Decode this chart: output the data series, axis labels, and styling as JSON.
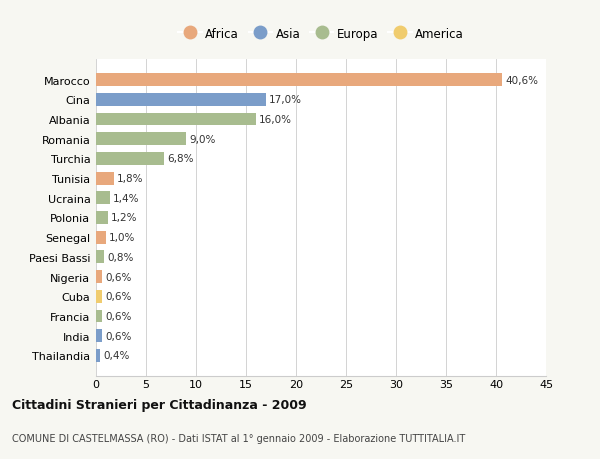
{
  "countries": [
    "Marocco",
    "Cina",
    "Albania",
    "Romania",
    "Turchia",
    "Tunisia",
    "Ucraina",
    "Polonia",
    "Senegal",
    "Paesi Bassi",
    "Nigeria",
    "Cuba",
    "Francia",
    "India",
    "Thailandia"
  ],
  "values": [
    40.6,
    17.0,
    16.0,
    9.0,
    6.8,
    1.8,
    1.4,
    1.2,
    1.0,
    0.8,
    0.6,
    0.6,
    0.6,
    0.6,
    0.4
  ],
  "labels": [
    "40,6%",
    "17,0%",
    "16,0%",
    "9,0%",
    "6,8%",
    "1,8%",
    "1,4%",
    "1,2%",
    "1,0%",
    "0,8%",
    "0,6%",
    "0,6%",
    "0,6%",
    "0,6%",
    "0,4%"
  ],
  "continents": [
    "Africa",
    "Asia",
    "Europa",
    "Europa",
    "Europa",
    "Africa",
    "Europa",
    "Europa",
    "Africa",
    "Europa",
    "Africa",
    "America",
    "Europa",
    "Asia",
    "Asia"
  ],
  "colors": {
    "Africa": "#E8A87C",
    "Asia": "#7B9DC9",
    "Europa": "#A8BC8F",
    "America": "#F0CC6E"
  },
  "legend_order": [
    "Africa",
    "Asia",
    "Europa",
    "America"
  ],
  "xlim": [
    0,
    45
  ],
  "xticks": [
    0,
    5,
    10,
    15,
    20,
    25,
    30,
    35,
    40,
    45
  ],
  "title": "Cittadini Stranieri per Cittadinanza - 2009",
  "subtitle": "COMUNE DI CASTELMASSA (RO) - Dati ISTAT al 1° gennaio 2009 - Elaborazione TUTTITALIA.IT",
  "background_color": "#f7f7f2",
  "plot_background": "#ffffff"
}
